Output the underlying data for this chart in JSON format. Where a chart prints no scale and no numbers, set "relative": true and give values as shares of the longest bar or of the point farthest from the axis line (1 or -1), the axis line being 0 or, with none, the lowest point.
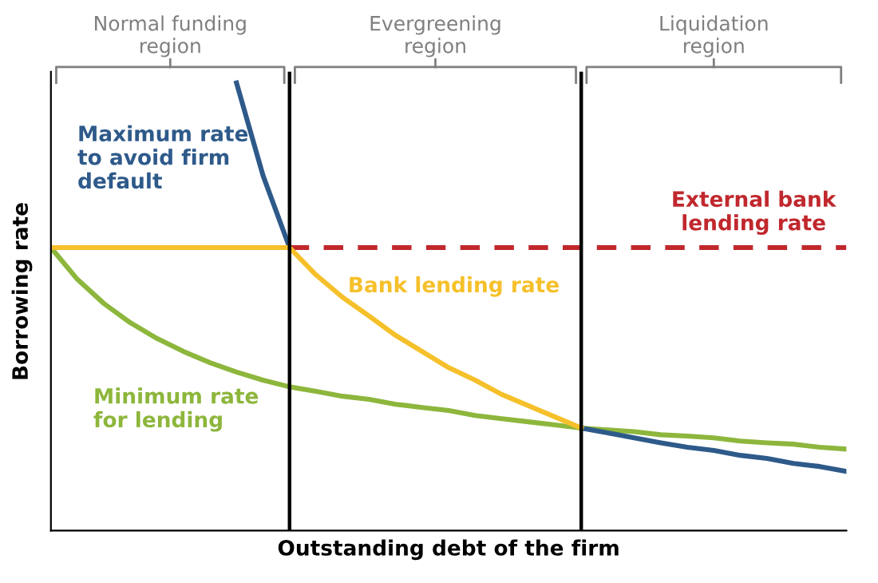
{
  "chart_data": {
    "type": "line",
    "relative": true,
    "xlabel": "Outstanding debt of the firm",
    "ylabel": "Borrowing rate",
    "categories": [
      null,
      null,
      null,
      null,
      null,
      null,
      null,
      null,
      null,
      null,
      null,
      null,
      null,
      null,
      null,
      null,
      null,
      null,
      null,
      null,
      null,
      null,
      null,
      null,
      null,
      null,
      null,
      null,
      null,
      null,
      null
    ],
    "series": [
      {
        "name": "Minimum rate\nfor lending",
        "color": "#8db63c",
        "values": [
          0.632,
          0.561,
          0.507,
          0.464,
          0.429,
          0.4,
          0.375,
          0.354,
          0.336,
          0.321,
          0.311,
          0.3,
          0.293,
          0.282,
          0.275,
          0.268,
          0.257,
          0.25,
          0.243,
          0.236,
          0.229,
          0.225,
          0.221,
          0.214,
          0.211,
          0.207,
          0.2,
          0.196,
          0.193,
          0.186,
          0.182
        ]
      },
      {
        "name": "Maximum rate\nto avoid firm\ndefault",
        "color": "#2e5a8a",
        "values": [
          null,
          null,
          null,
          null,
          null,
          null,
          null,
          1,
          0.793,
          0.632,
          null,
          null,
          null,
          null,
          null,
          null,
          null,
          null,
          null,
          null,
          0.229,
          0.218,
          0.207,
          0.196,
          0.186,
          0.179,
          0.168,
          0.161,
          0.15,
          0.143,
          0.132
        ]
      },
      {
        "name": "External bank\nlending rate",
        "color": "#c0282d",
        "line_style": "dashed",
        "values": [
          null,
          null,
          null,
          null,
          null,
          null,
          null,
          null,
          null,
          0.632,
          0.632,
          0.632,
          0.632,
          0.632,
          0.632,
          0.632,
          0.632,
          0.632,
          0.632,
          0.632,
          0.632,
          0.632,
          0.632,
          0.632,
          0.632,
          0.632,
          0.632,
          0.632,
          0.632,
          0.632,
          0.632
        ]
      },
      {
        "name": "Bank lending rate",
        "color": "#f5c02a",
        "values": [
          0.632,
          0.632,
          0.632,
          0.632,
          0.632,
          0.632,
          0.632,
          0.632,
          0.632,
          0.632,
          0.571,
          0.521,
          0.479,
          0.436,
          0.4,
          0.364,
          0.336,
          0.304,
          0.279,
          0.254,
          0.229,
          null,
          null,
          null,
          null,
          null,
          null,
          null,
          null,
          null,
          null
        ]
      }
    ],
    "annotations": [
      "Normal funding\nregion",
      "Evergreening\nregion",
      "Liquidation\nregion"
    ],
    "legend": false,
    "tick_labels": false,
    "marker": "none",
    "line_style": "solid"
  }
}
